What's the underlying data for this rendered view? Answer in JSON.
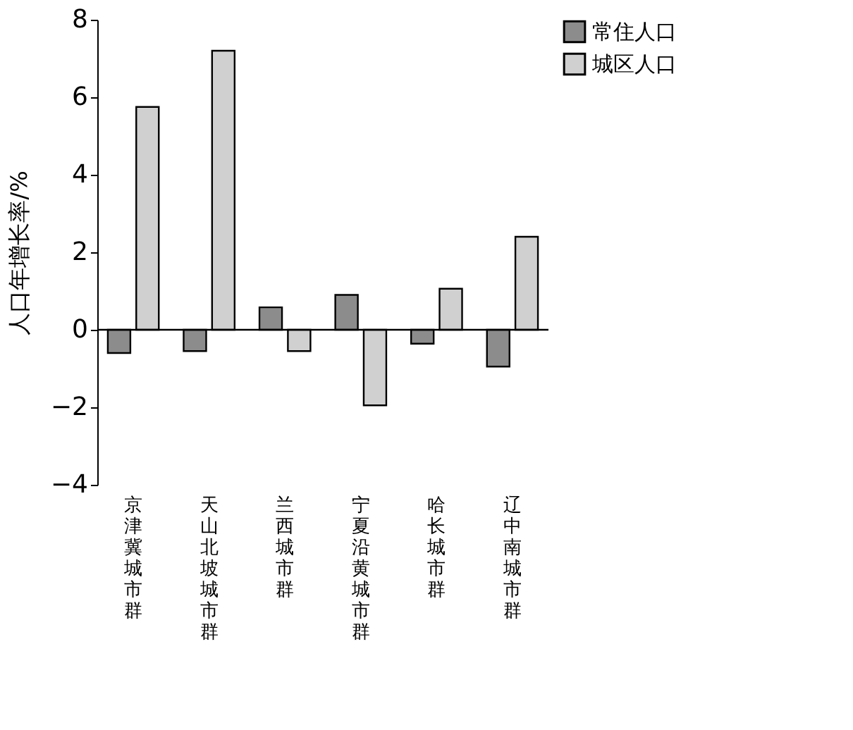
{
  "chart_data": {
    "type": "bar",
    "ylabel": "人口年增长率/%",
    "categories": [
      "京津冀城市群",
      "天山北坡城市群",
      "兰西城市群",
      "宁夏沿黄城市群",
      "哈长城市群",
      "辽中南城市群"
    ],
    "series": [
      {
        "name": "常住人口",
        "color": "#8c8c8c",
        "values": [
          -0.6,
          -0.55,
          0.58,
          0.9,
          -0.36,
          -0.95
        ]
      },
      {
        "name": "城区人口",
        "color": "#d0d0d0",
        "values": [
          5.75,
          7.2,
          -0.55,
          -1.95,
          1.06,
          2.4
        ]
      }
    ],
    "ylim": [
      -4,
      8
    ],
    "yticks": [
      -4,
      -2,
      0,
      2,
      4,
      6,
      8
    ],
    "ref_lines": [
      {
        "axis": "y",
        "value": 0,
        "color": "#000000",
        "line_style": "solid"
      }
    ],
    "grid": false,
    "legend": "right"
  }
}
